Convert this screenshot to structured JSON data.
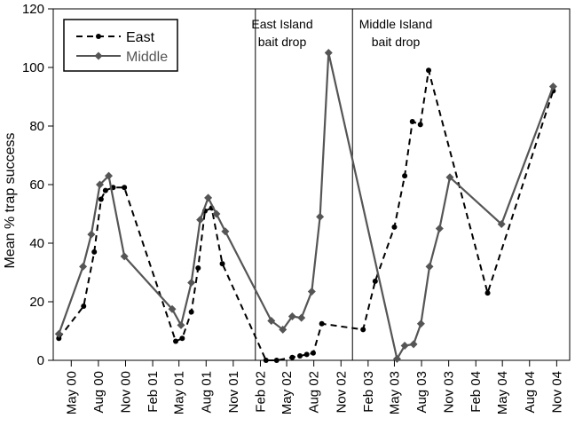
{
  "chart_data": {
    "type": "line",
    "title": "",
    "xlabel": "",
    "ylabel": "Mean % trap success",
    "ylim": [
      0,
      120
    ],
    "yticks": [
      0,
      20,
      40,
      60,
      80,
      100,
      120
    ],
    "xlim": [
      "2000-03-01",
      "2004-12-15"
    ],
    "xticks": [
      {
        "date": "2000-05-01",
        "label": "May 00"
      },
      {
        "date": "2000-08-01",
        "label": "Aug 00"
      },
      {
        "date": "2000-11-01",
        "label": "Nov 00"
      },
      {
        "date": "2001-02-01",
        "label": "Feb 01"
      },
      {
        "date": "2001-05-01",
        "label": "May 01"
      },
      {
        "date": "2001-08-01",
        "label": "Aug 01"
      },
      {
        "date": "2001-11-01",
        "label": "Nov 01"
      },
      {
        "date": "2002-02-01",
        "label": "Feb 02"
      },
      {
        "date": "2002-05-01",
        "label": "May 02"
      },
      {
        "date": "2002-08-01",
        "label": "Aug 02"
      },
      {
        "date": "2002-11-01",
        "label": "Nov 02"
      },
      {
        "date": "2003-02-01",
        "label": "Feb 03"
      },
      {
        "date": "2003-05-01",
        "label": "May 03"
      },
      {
        "date": "2003-08-01",
        "label": "Aug 03"
      },
      {
        "date": "2003-11-01",
        "label": "Nov 03"
      },
      {
        "date": "2004-02-01",
        "label": "Feb 04"
      },
      {
        "date": "2004-05-01",
        "label": "May 04"
      },
      {
        "date": "2004-08-01",
        "label": "Aug 04"
      },
      {
        "date": "2004-11-01",
        "label": "Nov 04"
      }
    ],
    "legend": {
      "position": "top-left",
      "entries": [
        "East",
        "Middle"
      ]
    },
    "annotations": [
      {
        "date": "2002-01-15",
        "lines": [
          "East Island",
          "bait drop"
        ]
      },
      {
        "date": "2002-12-10",
        "lines": [
          "Middle Island",
          "bait drop"
        ]
      }
    ],
    "series": [
      {
        "name": "East",
        "style": "dashed",
        "marker": "circle",
        "color": "#000000",
        "points": [
          {
            "x": "2000-03-20",
            "y": 7.5
          },
          {
            "x": "2000-06-12",
            "y": 18.5
          },
          {
            "x": "2000-07-18",
            "y": 37
          },
          {
            "x": "2000-08-10",
            "y": 55
          },
          {
            "x": "2000-08-25",
            "y": 58
          },
          {
            "x": "2000-09-20",
            "y": 59
          },
          {
            "x": "2000-10-28",
            "y": 59
          },
          {
            "x": "2001-04-20",
            "y": 6.5
          },
          {
            "x": "2001-05-12",
            "y": 7.5
          },
          {
            "x": "2001-06-12",
            "y": 16.5
          },
          {
            "x": "2001-07-05",
            "y": 31.5
          },
          {
            "x": "2001-07-28",
            "y": 51
          },
          {
            "x": "2001-08-20",
            "y": 52
          },
          {
            "x": "2001-09-25",
            "y": 33
          },
          {
            "x": "2002-02-20",
            "y": 0
          },
          {
            "x": "2002-03-28",
            "y": 0
          },
          {
            "x": "2002-05-20",
            "y": 1
          },
          {
            "x": "2002-06-15",
            "y": 1.5
          },
          {
            "x": "2002-07-08",
            "y": 2
          },
          {
            "x": "2002-07-30",
            "y": 2.5
          },
          {
            "x": "2002-08-28",
            "y": 12.5
          },
          {
            "x": "2003-01-15",
            "y": 10.5
          },
          {
            "x": "2003-02-25",
            "y": 27
          },
          {
            "x": "2003-05-01",
            "y": 45.5
          },
          {
            "x": "2003-06-05",
            "y": 63
          },
          {
            "x": "2003-07-01",
            "y": 81.5
          },
          {
            "x": "2003-07-28",
            "y": 80.5
          },
          {
            "x": "2003-08-25",
            "y": 99
          },
          {
            "x": "2004-03-12",
            "y": 23
          },
          {
            "x": "2004-10-20",
            "y": 92
          }
        ]
      },
      {
        "name": "Middle",
        "style": "solid",
        "marker": "diamond",
        "color": "#555555",
        "points": [
          {
            "x": "2000-03-20",
            "y": 9
          },
          {
            "x": "2000-06-10",
            "y": 32
          },
          {
            "x": "2000-07-08",
            "y": 43
          },
          {
            "x": "2000-08-06",
            "y": 60
          },
          {
            "x": "2000-09-05",
            "y": 63
          },
          {
            "x": "2000-10-28",
            "y": 35.5
          },
          {
            "x": "2001-04-08",
            "y": 17.5
          },
          {
            "x": "2001-05-08",
            "y": 12
          },
          {
            "x": "2001-06-12",
            "y": 26.5
          },
          {
            "x": "2001-07-12",
            "y": 48
          },
          {
            "x": "2001-08-08",
            "y": 55.5
          },
          {
            "x": "2001-09-05",
            "y": 50
          },
          {
            "x": "2001-10-05",
            "y": 44
          },
          {
            "x": "2002-03-10",
            "y": 13.5
          },
          {
            "x": "2002-04-18",
            "y": 10.5
          },
          {
            "x": "2002-05-20",
            "y": 15
          },
          {
            "x": "2002-06-20",
            "y": 14.5
          },
          {
            "x": "2002-07-25",
            "y": 23.5
          },
          {
            "x": "2002-08-22",
            "y": 49
          },
          {
            "x": "2002-09-20",
            "y": 105
          },
          {
            "x": "2003-05-10",
            "y": 0.5
          },
          {
            "x": "2003-06-05",
            "y": 5
          },
          {
            "x": "2003-07-05",
            "y": 5.5
          },
          {
            "x": "2003-07-30",
            "y": 12.5
          },
          {
            "x": "2003-08-28",
            "y": 32
          },
          {
            "x": "2003-10-01",
            "y": 45
          },
          {
            "x": "2003-11-05",
            "y": 62.5
          },
          {
            "x": "2004-04-28",
            "y": 46.5
          },
          {
            "x": "2004-10-20",
            "y": 93.5
          }
        ]
      }
    ]
  }
}
